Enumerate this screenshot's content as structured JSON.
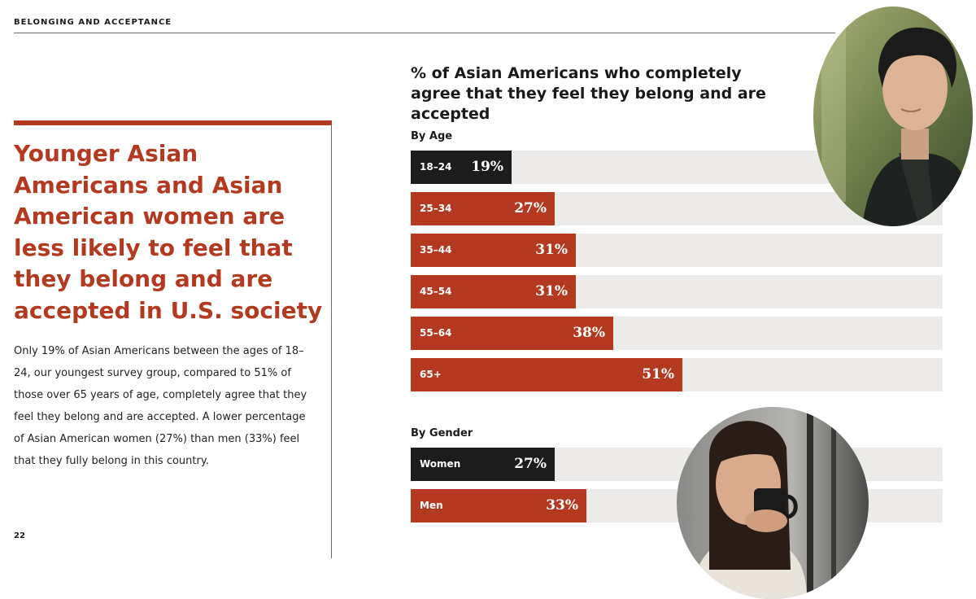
{
  "section_label": "BELONGING AND ACCEPTANCE",
  "headline": "Younger Asian Americans and Asian American women are less likely to feel that they belong and are accepted in U.S. society",
  "body_text": "Only 19% of Asian Americans between the ages of 18–24, our youngest survey group, compared to 51% of those over 65 years of age, completely agree that they feel they belong and are accepted. A lower percentage of Asian American women (27%) than men (33%) feel that they fully belong in this country.",
  "page_number": "22",
  "colors": {
    "accent": "#b33a20",
    "dark": "#1c1c1c",
    "track": "#ecebe9"
  },
  "photos": [
    {
      "name": "young-man-photo-icon"
    },
    {
      "name": "woman-drinking-coffee-photo-icon"
    }
  ],
  "chart_data": {
    "type": "bar",
    "orientation": "horizontal",
    "title": "% of Asian Americans who completely agree that they feel they belong and are accepted",
    "xlim": [
      0,
      100
    ],
    "groups": [
      {
        "label": "By Age",
        "categories": [
          "18–24",
          "25–34",
          "35–44",
          "45–54",
          "55–64",
          "65+"
        ],
        "values": [
          19,
          27,
          31,
          31,
          38,
          51
        ],
        "value_labels": [
          "19%",
          "27%",
          "31%",
          "31%",
          "38%",
          "51%"
        ],
        "highlight_index": 0
      },
      {
        "label": "By Gender",
        "categories": [
          "Women",
          "Men"
        ],
        "values": [
          27,
          33
        ],
        "value_labels": [
          "27%",
          "33%"
        ],
        "highlight_index": 0
      }
    ]
  }
}
